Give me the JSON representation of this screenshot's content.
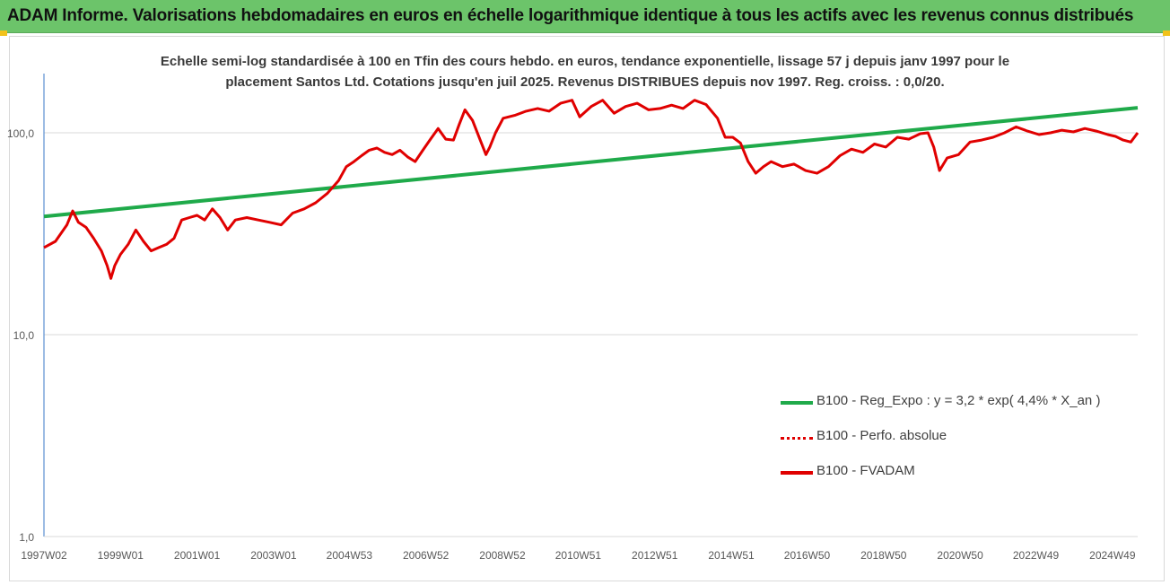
{
  "header": {
    "title": "ADAM Informe. Valorisations hebdomadaires en euros en échelle logarithmique identique à tous les actifs avec les revenus connus distribués",
    "background": "#6cc46a"
  },
  "chart_data": {
    "type": "line",
    "title_lines": [
      "Echelle semi-log standardisée à 100 en Tfin des cours hebdo. en euros, tendance exponentielle, lissage 57 j depuis janv 1997 pour le",
      "placement Santos Ltd. Cotations jusqu'en juil 2025. Revenus DISTRIBUES depuis nov 1997. Reg. croiss. : 0,0/20."
    ],
    "y_scale": "log",
    "ylim": [
      1,
      200
    ],
    "y_ticks": [
      {
        "value": 1,
        "label": "1,0"
      },
      {
        "value": 10,
        "label": "10,0"
      },
      {
        "value": 100,
        "label": "100,0"
      }
    ],
    "xlim": [
      1997.0,
      2025.58
    ],
    "x_ticks": [
      {
        "value": 1997.0,
        "label": "1997W02"
      },
      {
        "value": 1999.0,
        "label": "1999W01"
      },
      {
        "value": 2001.0,
        "label": "2001W01"
      },
      {
        "value": 2003.0,
        "label": "2003W01"
      },
      {
        "value": 2004.98,
        "label": "2004W53"
      },
      {
        "value": 2006.98,
        "label": "2006W52"
      },
      {
        "value": 2008.98,
        "label": "2008W52"
      },
      {
        "value": 2010.96,
        "label": "2010W51"
      },
      {
        "value": 2012.96,
        "label": "2012W51"
      },
      {
        "value": 2014.96,
        "label": "2014W51"
      },
      {
        "value": 2016.94,
        "label": "2016W50"
      },
      {
        "value": 2018.94,
        "label": "2018W50"
      },
      {
        "value": 2020.94,
        "label": "2020W50"
      },
      {
        "value": 2022.92,
        "label": "2022W49"
      },
      {
        "value": 2024.92,
        "label": "2024W49"
      }
    ],
    "grid": "horizontal",
    "legend_position": "lower-right",
    "series": [
      {
        "name": "B100 - Reg_Expo : y = 3,2 * exp( 4,4% *  X_an )",
        "color": "#1faa4a",
        "style": "solid",
        "x": [
          1997.0,
          2025.58
        ],
        "values": [
          38.5,
          133
        ]
      },
      {
        "name": "B100 - Perfo. absolue",
        "color": "#e00000",
        "style": "dotted",
        "x": [],
        "values": []
      },
      {
        "name": "B100 - FVADAM",
        "color": "#e00000",
        "style": "solid",
        "x": [
          1997.0,
          1997.3,
          1997.6,
          1997.75,
          1997.9,
          1998.1,
          1998.3,
          1998.5,
          1998.65,
          1998.75,
          1998.85,
          1999.0,
          1999.2,
          1999.4,
          1999.6,
          1999.8,
          2000.0,
          2000.2,
          2000.4,
          2000.6,
          2000.8,
          2001.0,
          2001.2,
          2001.4,
          2001.6,
          2001.8,
          2002.0,
          2002.3,
          2002.6,
          2002.9,
          2003.2,
          2003.5,
          2003.8,
          2004.1,
          2004.4,
          2004.7,
          2004.9,
          2005.1,
          2005.3,
          2005.5,
          2005.7,
          2005.9,
          2006.1,
          2006.3,
          2006.5,
          2006.7,
          2006.9,
          2007.1,
          2007.3,
          2007.5,
          2007.7,
          2007.85,
          2008.0,
          2008.2,
          2008.4,
          2008.55,
          2008.65,
          2008.8,
          2009.0,
          2009.3,
          2009.6,
          2009.9,
          2010.2,
          2010.5,
          2010.8,
          2011.0,
          2011.3,
          2011.6,
          2011.9,
          2012.2,
          2012.5,
          2012.8,
          2013.1,
          2013.4,
          2013.7,
          2014.0,
          2014.3,
          2014.6,
          2014.8,
          2015.0,
          2015.2,
          2015.4,
          2015.6,
          2015.8,
          2016.0,
          2016.3,
          2016.6,
          2016.9,
          2017.2,
          2017.5,
          2017.8,
          2018.1,
          2018.4,
          2018.7,
          2019.0,
          2019.3,
          2019.6,
          2019.9,
          2020.1,
          2020.25,
          2020.4,
          2020.6,
          2020.9,
          2021.2,
          2021.5,
          2021.8,
          2022.1,
          2022.4,
          2022.7,
          2023.0,
          2023.3,
          2023.6,
          2023.9,
          2024.2,
          2024.5,
          2024.8,
          2025.0,
          2025.2,
          2025.4,
          2025.58
        ],
        "values": [
          27,
          29,
          35,
          41,
          36,
          34,
          30,
          26,
          22,
          19,
          22,
          25,
          28,
          33,
          29,
          26,
          27,
          28,
          30,
          37,
          38,
          39,
          37,
          42,
          38,
          33,
          37,
          38,
          37,
          36,
          35,
          40,
          42,
          45,
          50,
          58,
          68,
          72,
          77,
          82,
          84,
          80,
          78,
          82,
          76,
          72,
          82,
          93,
          105,
          93,
          92,
          110,
          130,
          115,
          92,
          78,
          85,
          100,
          118,
          122,
          128,
          132,
          128,
          140,
          145,
          120,
          135,
          145,
          125,
          135,
          140,
          130,
          132,
          137,
          132,
          145,
          138,
          118,
          95,
          95,
          89,
          72,
          63,
          68,
          72,
          68,
          70,
          65,
          63,
          68,
          77,
          83,
          80,
          88,
          85,
          95,
          93,
          99,
          100,
          85,
          65,
          75,
          78,
          90,
          92,
          95,
          100,
          107,
          102,
          98,
          100,
          103,
          101,
          105,
          102,
          98,
          96,
          92,
          90,
          100
        ]
      }
    ]
  }
}
